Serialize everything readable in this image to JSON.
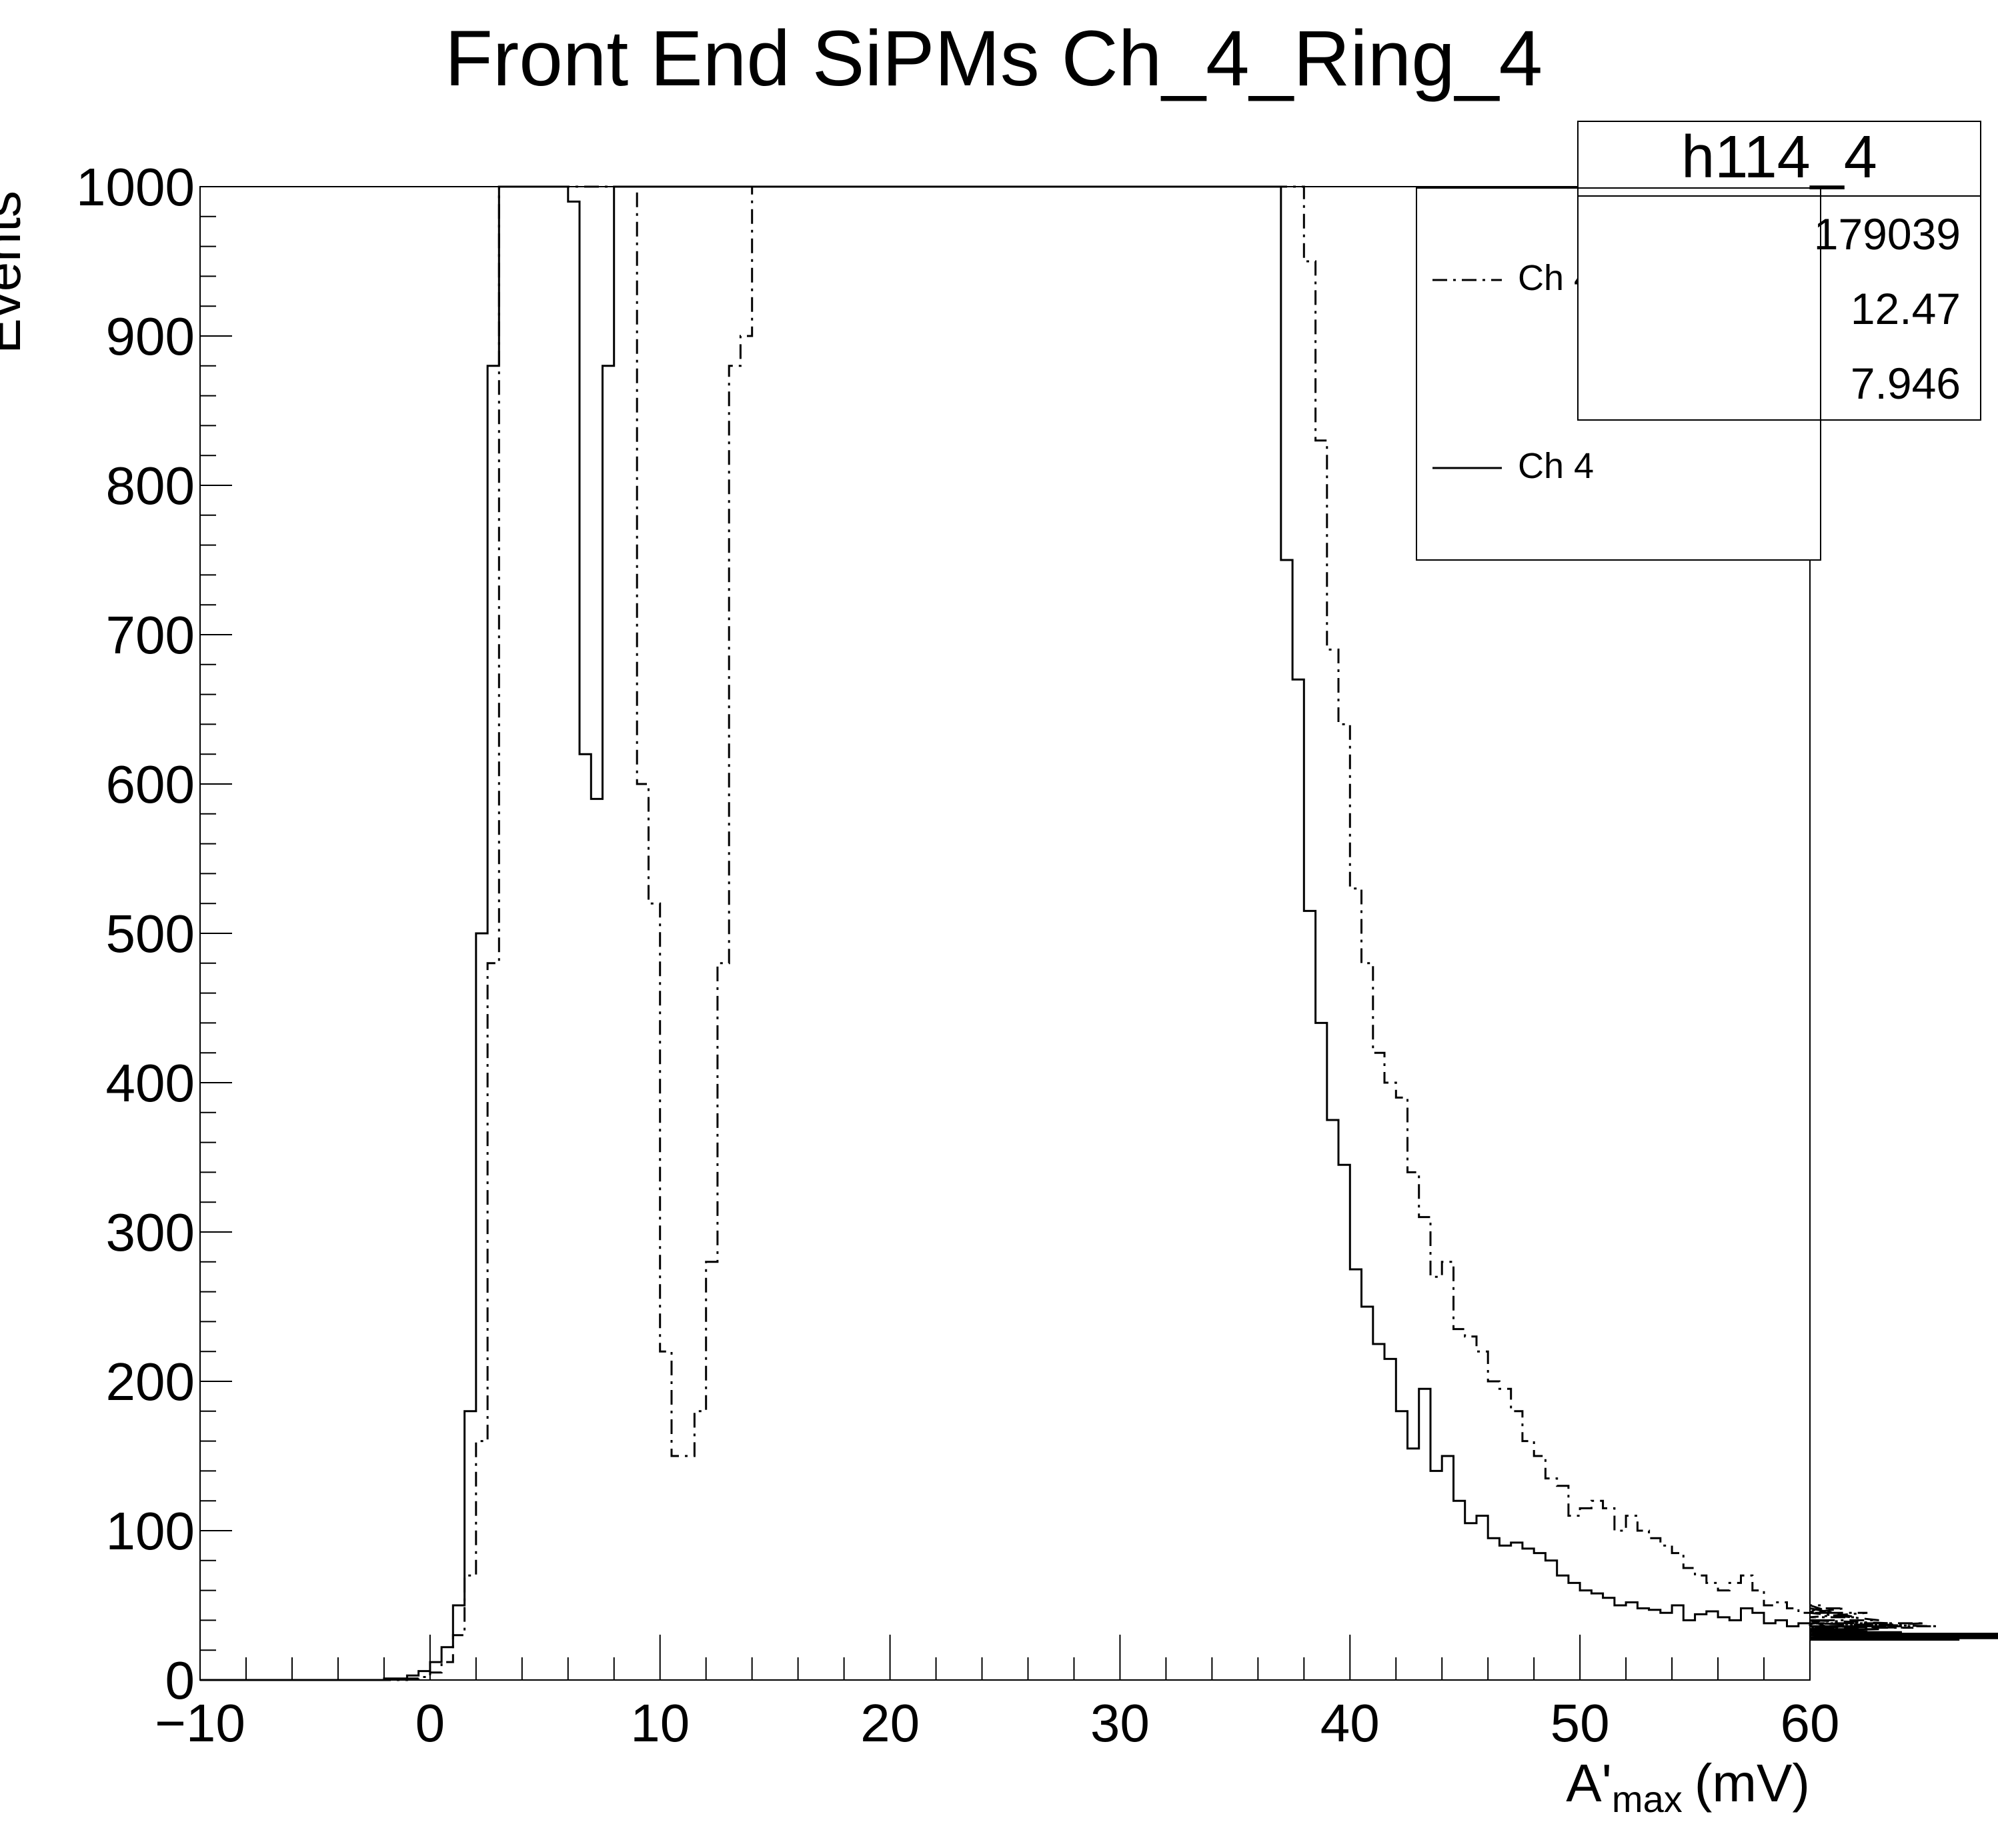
{
  "chart_data": {
    "type": "histogram",
    "title": "Front End SiPMs Ch_4_Ring_4",
    "xlabel": "A'",
    "xlabel_subscript": "max",
    "xlabel_unit": "(mV)",
    "ylabel": "Events",
    "xlim": [
      -10,
      60
    ],
    "ylim": [
      0,
      1000
    ],
    "bin_width": 0.5,
    "bin_start": -10,
    "x_ticks": [
      "−10",
      "0",
      "10",
      "20",
      "30",
      "40",
      "50",
      "60"
    ],
    "x_tick_values": [
      -10,
      0,
      10,
      20,
      30,
      40,
      50,
      60
    ],
    "y_ticks": [
      "0",
      "100",
      "200",
      "300",
      "400",
      "500",
      "600",
      "700",
      "800",
      "900",
      "1000"
    ],
    "y_tick_values": [
      0,
      100,
      200,
      300,
      400,
      500,
      600,
      700,
      800,
      900,
      1000
    ],
    "stats_box": {
      "name": "h114_4",
      "rows": [
        "179039",
        "12.47",
        "7.946"
      ]
    },
    "legend": {
      "placement": "top-right",
      "entries": [
        "Ch 4 Filtered",
        "Ch 4"
      ]
    },
    "series": [
      {
        "name": "Ch 4 Filtered",
        "style": "dash-dot",
        "color": "#000000",
        "values": [
          0,
          0,
          0,
          0,
          0,
          0,
          0,
          0,
          0,
          0,
          0,
          0,
          0,
          0,
          0,
          0,
          0,
          0,
          1,
          2,
          5,
          12,
          30,
          70,
          160,
          480,
          1000,
          1000,
          1000,
          1000,
          1000,
          1000,
          1000,
          1000,
          1000,
          1000,
          1000,
          1000,
          600,
          520,
          220,
          150,
          150,
          180,
          280,
          480,
          880,
          900,
          1000,
          1000,
          1000,
          1000,
          1000,
          1000,
          1000,
          1000,
          1000,
          1000,
          1000,
          1000,
          1000,
          1000,
          1000,
          1000,
          1000,
          1000,
          1000,
          1000,
          1000,
          1000,
          1000,
          1000,
          1000,
          1000,
          1000,
          1000,
          1000,
          1000,
          1000,
          1000,
          1000,
          1000,
          1000,
          1000,
          1000,
          1000,
          1000,
          1000,
          1000,
          1000,
          1000,
          1000,
          1000,
          1000,
          1000,
          1000,
          950,
          830,
          690,
          640,
          530,
          480,
          420,
          400,
          390,
          340,
          310,
          270,
          280,
          235,
          230,
          220,
          200,
          195,
          180,
          160,
          150,
          135,
          130,
          110,
          115,
          120,
          115,
          100,
          110,
          100,
          95,
          90,
          85,
          75,
          70,
          65,
          60,
          65,
          70,
          60,
          50,
          52,
          48,
          45,
          45,
          50,
          45,
          48,
          42,
          45,
          40,
          38,
          36,
          35,
          38,
          36
        ]
      },
      {
        "name": "Ch 4",
        "style": "solid",
        "color": "#000000",
        "values": [
          0,
          0,
          0,
          0,
          0,
          0,
          0,
          0,
          0,
          0,
          0,
          0,
          0,
          0,
          0,
          0,
          1,
          1,
          3,
          6,
          12,
          22,
          50,
          180,
          500,
          880,
          1000,
          1000,
          1000,
          1000,
          1000,
          1000,
          990,
          620,
          590,
          880,
          1000,
          1000,
          1000,
          1000,
          1000,
          1000,
          1000,
          1000,
          1000,
          1000,
          1000,
          1000,
          1000,
          1000,
          1000,
          1000,
          1000,
          1000,
          1000,
          1000,
          1000,
          1000,
          1000,
          1000,
          1000,
          1000,
          1000,
          1000,
          1000,
          1000,
          1000,
          1000,
          1000,
          1000,
          1000,
          1000,
          1000,
          1000,
          1000,
          1000,
          1000,
          1000,
          1000,
          1000,
          1000,
          1000,
          1000,
          1000,
          1000,
          1000,
          1000,
          1000,
          1000,
          1000,
          1000,
          1000,
          1000,
          1000,
          750,
          670,
          515,
          440,
          375,
          345,
          275,
          250,
          225,
          215,
          180,
          155,
          195,
          140,
          150,
          120,
          105,
          110,
          95,
          90,
          92,
          88,
          85,
          80,
          70,
          65,
          60,
          58,
          55,
          50,
          52,
          48,
          47,
          45,
          50,
          40,
          44,
          46,
          42,
          40,
          48,
          45,
          38,
          40,
          36,
          38,
          37,
          40,
          34,
          36,
          32,
          33,
          34,
          30,
          32,
          30,
          31,
          29,
          28,
          27,
          30,
          28,
          30,
          31,
          29,
          28,
          30,
          29,
          28,
          30,
          29
        ]
      }
    ]
  }
}
